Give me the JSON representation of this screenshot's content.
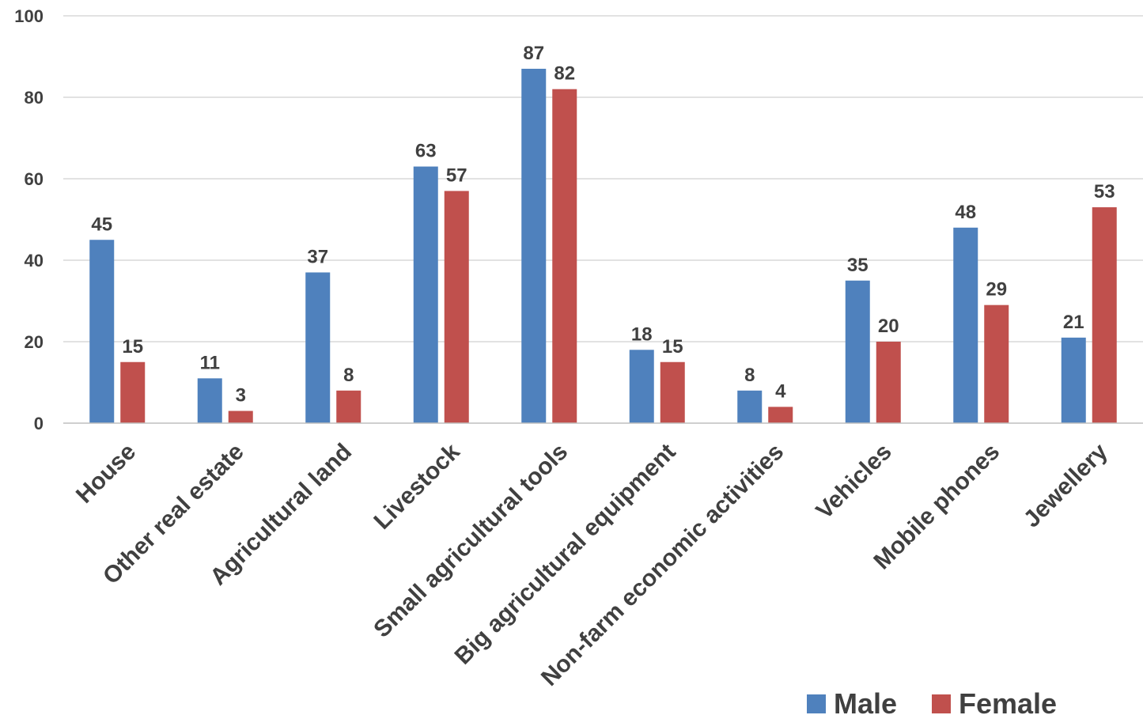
{
  "chart_data": {
    "type": "bar",
    "categories": [
      "House",
      "Other real estate",
      "Agricultural land",
      "Livestock",
      "Small agricultural tools",
      "Big agricultural equipment",
      "Non-farm economic activities",
      "Vehicles",
      "Mobile phones",
      "Jewellery"
    ],
    "series": [
      {
        "name": "Male",
        "color": "#4f81bd",
        "values": [
          45,
          11,
          37,
          63,
          87,
          18,
          8,
          35,
          48,
          21
        ]
      },
      {
        "name": "Female",
        "color": "#c0504d",
        "values": [
          15,
          3,
          8,
          57,
          82,
          15,
          4,
          20,
          29,
          53
        ]
      }
    ],
    "title": "",
    "xlabel": "",
    "ylabel": "",
    "ylim": [
      0,
      100
    ],
    "yticks": [
      "0",
      "20",
      "40",
      "60",
      "80",
      "100"
    ],
    "grid": true,
    "legend_position": "bottom-right",
    "data_labels": true
  }
}
